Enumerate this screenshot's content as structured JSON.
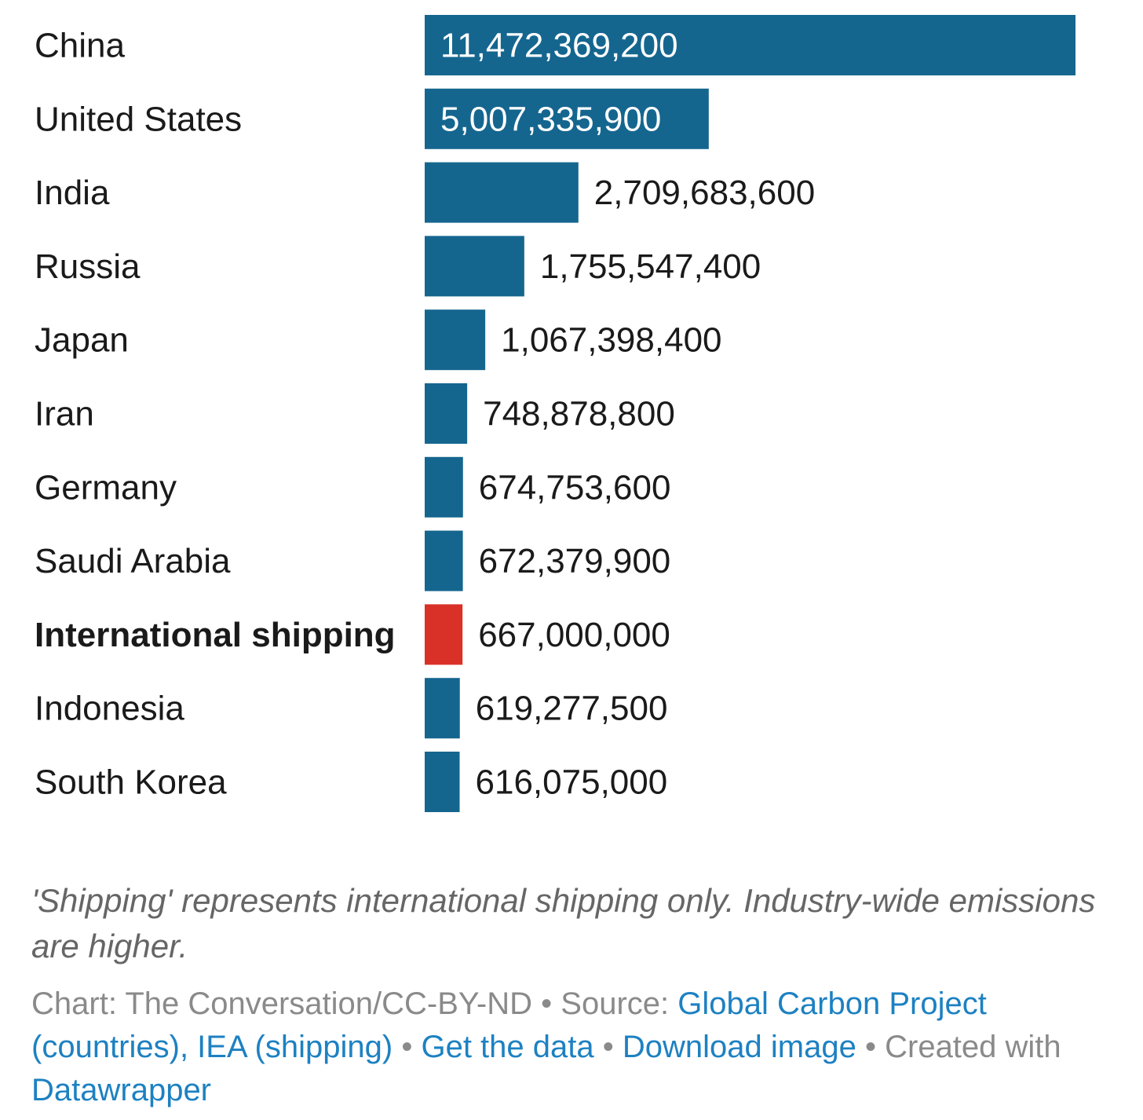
{
  "chart_data": {
    "type": "bar",
    "orientation": "horizontal",
    "categories": [
      "China",
      "United States",
      "India",
      "Russia",
      "Japan",
      "Iran",
      "Germany",
      "Saudi Arabia",
      "International shipping",
      "Indonesia",
      "South Korea"
    ],
    "values": [
      11472369200,
      5007335900,
      2709683600,
      1755547400,
      1067398400,
      748878800,
      674753600,
      672379900,
      667000000,
      619277500,
      616075000
    ],
    "value_labels": [
      "11,472,369,200",
      "5,007,335,900",
      "2,709,683,600",
      "1,755,547,400",
      "1,067,398,400",
      "748,878,800",
      "674,753,600",
      "672,379,900",
      "667,000,000",
      "619,277,500",
      "616,075,000"
    ],
    "highlight_category": "International shipping",
    "colors": {
      "default": "#15668f",
      "highlight": "#d93127"
    },
    "xlim": [
      0,
      11472369200
    ],
    "title": "",
    "xlabel": "",
    "ylabel": "",
    "grid": false,
    "legend": "none"
  },
  "footer": {
    "note": "'Shipping' represents international shipping only. Industry-wide emissions are higher.",
    "chart_credit": "Chart: The Conversation/CC-BY-ND",
    "separator": "•",
    "source_prefix": "Source:",
    "source_link": "Global Carbon Project (countries), IEA (shipping)",
    "get_data_link": "Get the data",
    "download_link": "Download image",
    "created_with": "Created with",
    "datawrapper_link": "Datawrapper"
  }
}
